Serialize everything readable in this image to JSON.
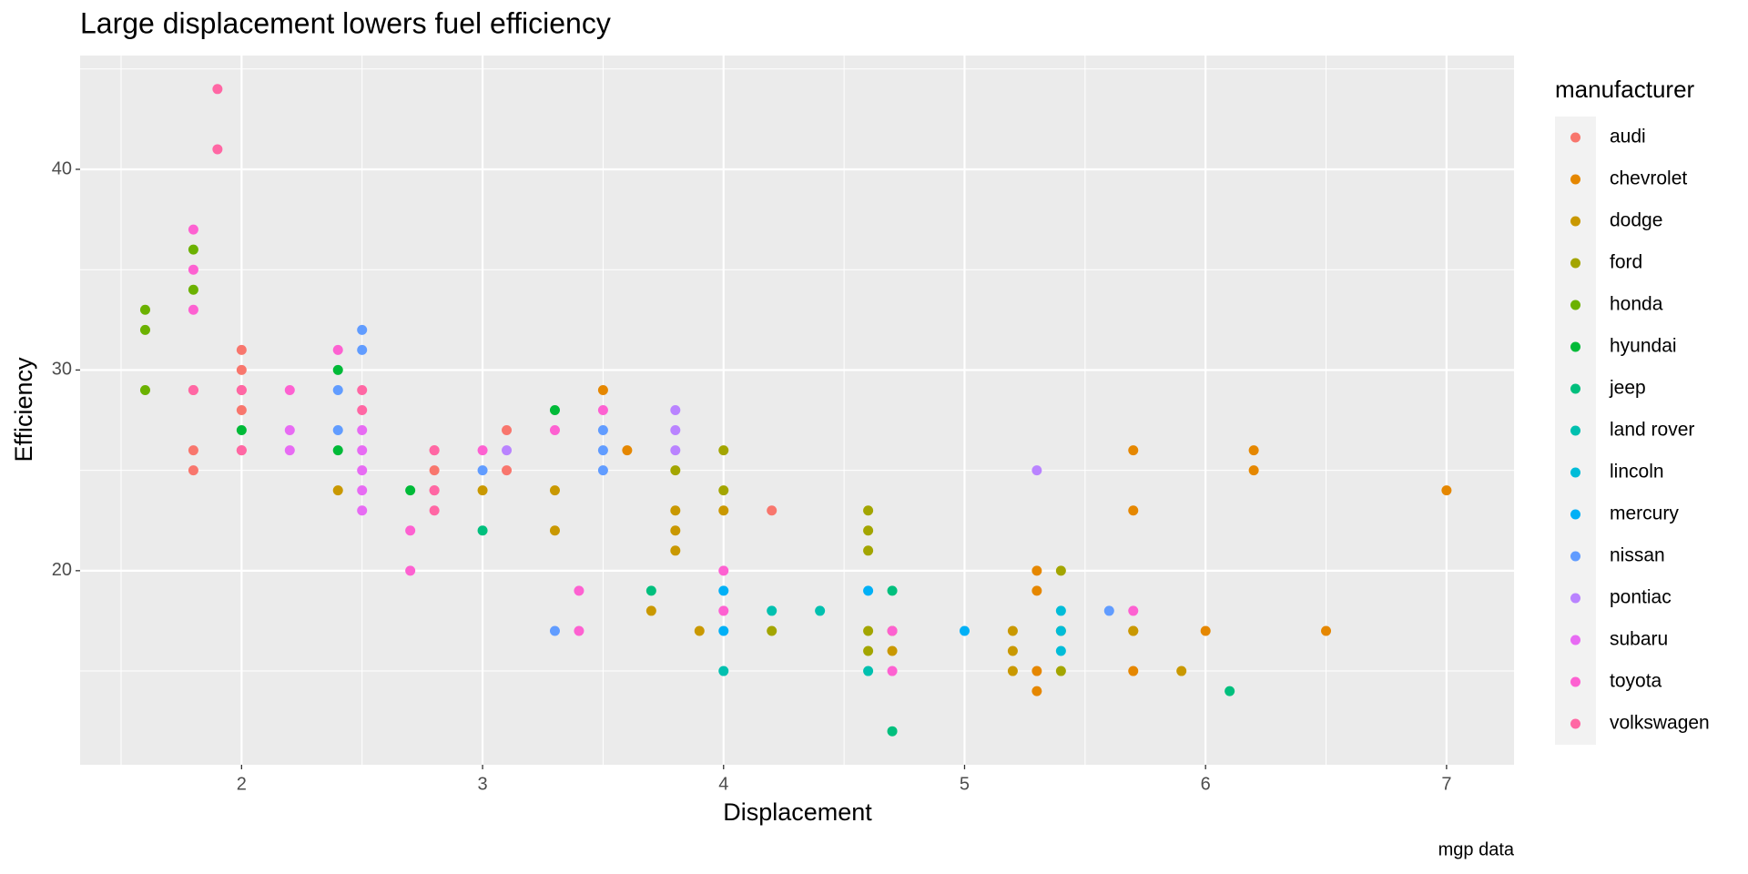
{
  "chart_data": {
    "type": "scatter",
    "title": "Large displacement lowers fuel efficiency",
    "x_label": "Displacement",
    "y_label": "Efficiency",
    "caption": "mgp data",
    "legend_title": "manufacturer",
    "xlim": [
      1.33,
      7.28
    ],
    "xticks": [
      2,
      3,
      4,
      5,
      6,
      7
    ],
    "ylim": [
      10.33,
      45.67
    ],
    "yticks": [
      20,
      30,
      40
    ],
    "grid": true,
    "legend": "right",
    "series": [
      {
        "name": "audi",
        "color": "#F8766D",
        "x": [
          1.8,
          1.8,
          1.8,
          2,
          2,
          2,
          2,
          2,
          2.8,
          2.8,
          2.8,
          3.1,
          3.1,
          4.2
        ],
        "y": [
          29,
          26,
          25,
          31,
          30,
          29,
          28,
          26,
          26,
          25,
          24,
          27,
          25,
          23
        ]
      },
      {
        "name": "chevrolet",
        "color": "#E58700",
        "x": [
          3.5,
          3.6,
          5.3,
          5.3,
          5.3,
          5.3,
          5.7,
          5.7,
          5.7,
          5.7,
          6,
          6.2,
          6.2,
          6.5,
          7
        ],
        "y": [
          29,
          26,
          20,
          19,
          15,
          14,
          26,
          23,
          17,
          15,
          17,
          26,
          25,
          17,
          24
        ]
      },
      {
        "name": "dodge",
        "color": "#C99800",
        "x": [
          2.4,
          3,
          3.3,
          3.3,
          3.7,
          3.8,
          3.8,
          3.8,
          3.9,
          4,
          4.7,
          4.7,
          5.2,
          5.2,
          5.2,
          5.7,
          5.9
        ],
        "y": [
          24,
          24,
          24,
          22,
          18,
          23,
          22,
          21,
          17,
          23,
          17,
          16,
          17,
          16,
          15,
          17,
          15
        ]
      },
      {
        "name": "ford",
        "color": "#A3A500",
        "x": [
          3.8,
          4,
          4,
          4.2,
          4.6,
          4.6,
          4.6,
          4.6,
          4.6,
          5.4,
          5.4,
          5.4
        ],
        "y": [
          25,
          26,
          24,
          17,
          23,
          22,
          21,
          17,
          16,
          20,
          17,
          15
        ]
      },
      {
        "name": "honda",
        "color": "#6BB100",
        "x": [
          1.6,
          1.6,
          1.6,
          1.8,
          1.8
        ],
        "y": [
          33,
          32,
          29,
          36,
          34
        ]
      },
      {
        "name": "hyundai",
        "color": "#00BA38",
        "x": [
          2,
          2.4,
          2.4,
          2.7,
          3.3
        ],
        "y": [
          27,
          30,
          26,
          24,
          28
        ]
      },
      {
        "name": "jeep",
        "color": "#00BF7D",
        "x": [
          3,
          3.7,
          4.7,
          4.7,
          6.1
        ],
        "y": [
          22,
          19,
          19,
          12,
          14
        ]
      },
      {
        "name": "land rover",
        "color": "#00C0AF",
        "x": [
          4,
          4.2,
          4.4,
          4.6
        ],
        "y": [
          15,
          18,
          18,
          15
        ]
      },
      {
        "name": "lincoln",
        "color": "#00BCD8",
        "x": [
          5.4,
          5.4,
          5.4
        ],
        "y": [
          18,
          17,
          16
        ]
      },
      {
        "name": "mercury",
        "color": "#00B0F6",
        "x": [
          4,
          4,
          4.6,
          5
        ],
        "y": [
          19,
          17,
          19,
          17
        ]
      },
      {
        "name": "nissan",
        "color": "#619CFF",
        "x": [
          2.4,
          2.4,
          2.5,
          2.5,
          3,
          3.3,
          3.5,
          3.5,
          3.5,
          5.6
        ],
        "y": [
          29,
          27,
          32,
          31,
          25,
          17,
          27,
          26,
          25,
          18
        ]
      },
      {
        "name": "pontiac",
        "color": "#B983FF",
        "x": [
          3.1,
          3.8,
          3.8,
          3.8,
          5.3
        ],
        "y": [
          26,
          28,
          27,
          26,
          25
        ]
      },
      {
        "name": "subaru",
        "color": "#E76BF3",
        "x": [
          2.2,
          2.2,
          2.5,
          2.5,
          2.5,
          2.5,
          2.5
        ],
        "y": [
          27,
          26,
          27,
          26,
          25,
          24,
          23
        ]
      },
      {
        "name": "toyota",
        "color": "#FD61D1",
        "x": [
          1.8,
          1.8,
          1.8,
          2.2,
          2.4,
          2.7,
          2.7,
          3,
          3.3,
          3.4,
          3.4,
          3.5,
          4,
          4,
          4.7,
          4.7,
          5.7
        ],
        "y": [
          37,
          35,
          33,
          29,
          31,
          22,
          20,
          26,
          27,
          19,
          17,
          28,
          20,
          18,
          17,
          15,
          18
        ]
      },
      {
        "name": "volkswagen",
        "color": "#FF67A4",
        "x": [
          1.8,
          1.9,
          1.9,
          2,
          2,
          2.5,
          2.5,
          2.8,
          2.8,
          2.8
        ],
        "y": [
          29,
          44,
          41,
          29,
          26,
          29,
          28,
          26,
          24,
          23
        ]
      }
    ]
  }
}
